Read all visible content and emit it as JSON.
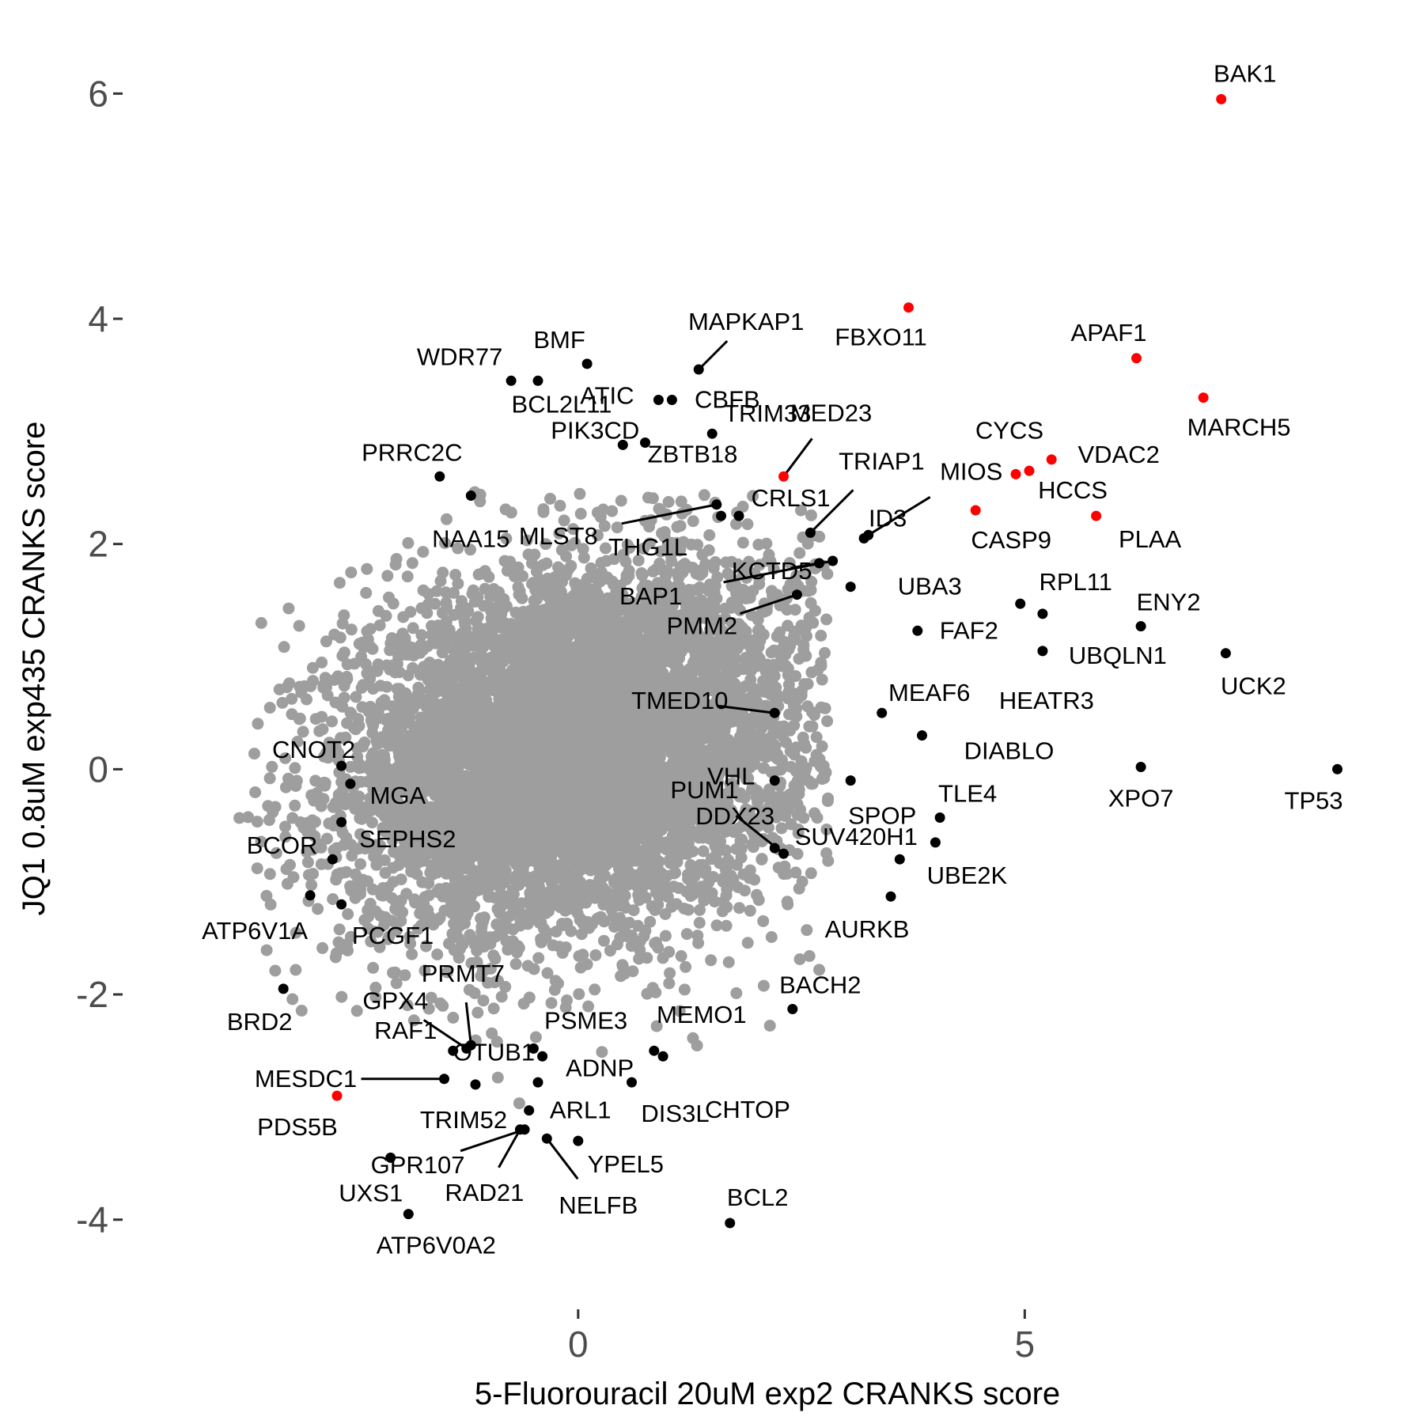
{
  "chart_data": {
    "type": "scatter",
    "xlabel": "5-Fluorouracil 20uM exp2 CRANKS score",
    "ylabel": "JQ1 0.8uM exp435 CRANKS score",
    "xlim": [
      -5.1,
      8.85
    ],
    "ylim": [
      -4.55,
      6.55
    ],
    "x_ticks": [
      0,
      5
    ],
    "y_ticks": [
      -4,
      -2,
      0,
      2,
      4,
      6
    ],
    "grid": false,
    "legend": "none",
    "colors": {
      "background_genes": "#9e9e9e",
      "labeled_genes": "#000000",
      "highlighted_genes": "#ff0000"
    },
    "background_cloud": {
      "center_x": 0.0,
      "center_y": 0.2,
      "spread_x": 1.3,
      "spread_y": 0.8,
      "x_extent": [
        -3.8,
        2.8
      ],
      "y_extent": [
        -3.2,
        2.5
      ]
    },
    "series": [
      {
        "color": "#ff0000",
        "points": [
          {
            "label": "BAK1",
            "x": 7.2,
            "y": 5.95
          },
          {
            "label": "FBXO11",
            "x": 3.7,
            "y": 4.1
          },
          {
            "label": "APAF1",
            "x": 6.25,
            "y": 3.65
          },
          {
            "label": "MARCH5",
            "x": 7.0,
            "y": 3.3
          },
          {
            "label": "VDAC2",
            "x": 5.3,
            "y": 2.75
          },
          {
            "label": "HCCS",
            "x": 5.05,
            "y": 2.65
          },
          {
            "label": "CYCS",
            "x": 4.9,
            "y": 2.62
          },
          {
            "label": "CASP9",
            "x": 4.45,
            "y": 2.3
          },
          {
            "label": "PLAA",
            "x": 5.8,
            "y": 2.25
          },
          {
            "label": "MED23",
            "x": 2.3,
            "y": 2.6
          },
          {
            "label": "PDS5B",
            "x": -2.7,
            "y": -2.9
          }
        ]
      },
      {
        "color": "#000000",
        "points": [
          {
            "label": "MAPKAP1",
            "x": 1.35,
            "y": 3.55
          },
          {
            "label": "BMF",
            "x": 0.1,
            "y": 3.6
          },
          {
            "label": "WDR77",
            "x": -0.75,
            "y": 3.45
          },
          {
            "label": "ATIC",
            "x": 0.9,
            "y": 3.28
          },
          {
            "label": "CBFB",
            "x": 1.05,
            "y": 3.28
          },
          {
            "label": "BCL2L11",
            "x": -0.45,
            "y": 3.45
          },
          {
            "label": "PIK3CD",
            "x": 0.5,
            "y": 2.88
          },
          {
            "label": "ZBTB18",
            "x": 0.75,
            "y": 2.9
          },
          {
            "label": "TRIM33",
            "x": 1.5,
            "y": 2.98
          },
          {
            "label": "PRRC2C",
            "x": -1.55,
            "y": 2.6
          },
          {
            "label": "NAA15",
            "x": -1.2,
            "y": 2.43
          },
          {
            "label": "CRLS1",
            "x": 1.6,
            "y": 2.25
          },
          {
            "label": "MLST8",
            "x": 1.55,
            "y": 2.35
          },
          {
            "label": "THG1L",
            "x": 1.8,
            "y": 2.25
          },
          {
            "label": "TRIAP1",
            "x": 2.6,
            "y": 2.1
          },
          {
            "label": "MIOS",
            "x": 3.25,
            "y": 2.08
          },
          {
            "label": "ID3",
            "x": 3.2,
            "y": 2.05
          },
          {
            "label": "KCTD5",
            "x": 2.7,
            "y": 1.83
          },
          {
            "label": "BAP1",
            "x": 2.85,
            "y": 1.85
          },
          {
            "label": "UBA3",
            "x": 3.05,
            "y": 1.62
          },
          {
            "label": "PMM2",
            "x": 2.45,
            "y": 1.55
          },
          {
            "label": "RPL11",
            "x": 4.95,
            "y": 1.47
          },
          {
            "label": "ENY2",
            "x": 6.3,
            "y": 1.27
          },
          {
            "label": "FAF2",
            "x": 3.8,
            "y": 1.23
          },
          {
            "label": "UBQLN1",
            "x": 5.2,
            "y": 1.05
          },
          {
            "label": "UCK2",
            "x": 7.25,
            "y": 1.03
          },
          {
            "label": "HEATR3",
            "x": 5.2,
            "y": 1.38
          },
          {
            "label": "MEAF6",
            "x": 3.4,
            "y": 0.5
          },
          {
            "label": "TMED10",
            "x": 2.2,
            "y": 0.5
          },
          {
            "label": "DIABLO",
            "x": 3.85,
            "y": 0.3
          },
          {
            "label": "VHL",
            "x": 2.2,
            "y": -0.1
          },
          {
            "label": "XPO7",
            "x": 6.3,
            "y": 0.02
          },
          {
            "label": "TP53",
            "x": 8.5,
            "y": 0.0
          },
          {
            "label": "SPOP",
            "x": 3.05,
            "y": -0.1
          },
          {
            "label": "TLE4",
            "x": 4.05,
            "y": -0.43
          },
          {
            "label": "UBE2K",
            "x": 4.0,
            "y": -0.65
          },
          {
            "label": "SUV420H1",
            "x": 3.6,
            "y": -0.8
          },
          {
            "label": "DDX23",
            "x": 2.2,
            "y": -0.7
          },
          {
            "label": "PUM1",
            "x": 2.3,
            "y": -0.75
          },
          {
            "label": "AURKB",
            "x": 3.5,
            "y": -1.13
          },
          {
            "label": "BACH2",
            "x": 2.4,
            "y": -2.13
          },
          {
            "label": "BCL2",
            "x": 1.7,
            "y": -4.03
          },
          {
            "label": "CNOT2",
            "x": -2.65,
            "y": 0.03
          },
          {
            "label": "MGA",
            "x": -2.55,
            "y": -0.13
          },
          {
            "label": "BCOR",
            "x": -2.65,
            "y": -0.47
          },
          {
            "label": "SEPHS2",
            "x": -2.75,
            "y": -0.8
          },
          {
            "label": "ATP6V1A",
            "x": -3.0,
            "y": -1.12
          },
          {
            "label": "PCGF1",
            "x": -2.65,
            "y": -1.2
          },
          {
            "label": "BRD2",
            "x": -3.3,
            "y": -1.95
          },
          {
            "label": "GPX4",
            "x": -1.25,
            "y": -2.48
          },
          {
            "label": "PRMT7",
            "x": -1.2,
            "y": -2.45
          },
          {
            "label": "RAF1",
            "x": -1.4,
            "y": -2.5
          },
          {
            "label": "OTUB1",
            "x": -0.5,
            "y": -2.48
          },
          {
            "label": "PSME3",
            "x": -0.4,
            "y": -2.55
          },
          {
            "label": "MEMO1",
            "x": 0.85,
            "y": -2.5
          },
          {
            "label": "ADNP",
            "x": 0.95,
            "y": -2.55
          },
          {
            "label": "CHTOP",
            "x": -0.45,
            "y": -2.78
          },
          {
            "label": "DIS3L",
            "x": 0.6,
            "y": -2.78
          },
          {
            "label": "MESDC1",
            "x": -1.5,
            "y": -2.75
          },
          {
            "label": "TRIM52",
            "x": -1.15,
            "y": -2.8
          },
          {
            "label": "ARL1",
            "x": -0.55,
            "y": -3.03
          },
          {
            "label": "GPR107",
            "x": -0.6,
            "y": -3.2
          },
          {
            "label": "RAD21",
            "x": -0.65,
            "y": -3.2
          },
          {
            "label": "NELFB",
            "x": -0.35,
            "y": -3.28
          },
          {
            "label": "YPEL5",
            "x": 0.0,
            "y": -3.3
          },
          {
            "label": "UXS1",
            "x": -2.1,
            "y": -3.45
          },
          {
            "label": "ATP6V0A2",
            "x": -1.9,
            "y": -3.95
          }
        ]
      }
    ]
  }
}
